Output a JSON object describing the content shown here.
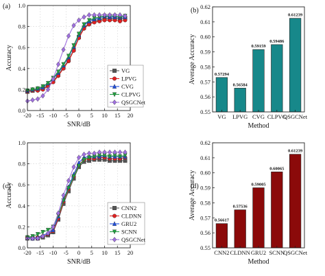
{
  "chart_data": [
    {
      "panel": "(a)",
      "type": "line",
      "xlabel": "SNR/dB",
      "ylabel": "Accuracy",
      "xlim": [
        -20,
        20
      ],
      "ylim": [
        0.0,
        1.0
      ],
      "xticks": [
        -20,
        -15,
        -10,
        -5,
        0,
        5,
        10,
        15,
        20
      ],
      "yticks": [
        0.0,
        0.2,
        0.4,
        0.6,
        0.8,
        1.0
      ],
      "legend": "bottom-right",
      "x": [
        -20,
        -18,
        -16,
        -14,
        -12,
        -10,
        -8,
        -6,
        -4,
        -2,
        0,
        2,
        4,
        6,
        8,
        10,
        12,
        14,
        16,
        18
      ],
      "series": [
        {
          "name": "VG",
          "color": "#555555",
          "marker": "square",
          "values": [
            0.18,
            0.19,
            0.2,
            0.21,
            0.24,
            0.28,
            0.34,
            0.41,
            0.48,
            0.58,
            0.7,
            0.79,
            0.83,
            0.85,
            0.86,
            0.88,
            0.87,
            0.88,
            0.87,
            0.88
          ]
        },
        {
          "name": "LPVG",
          "color": "#e02020",
          "marker": "circle",
          "values": [
            0.18,
            0.19,
            0.19,
            0.2,
            0.23,
            0.27,
            0.33,
            0.4,
            0.47,
            0.57,
            0.69,
            0.78,
            0.82,
            0.84,
            0.85,
            0.86,
            0.86,
            0.86,
            0.85,
            0.86
          ]
        },
        {
          "name": "CVG",
          "color": "#2050e0",
          "marker": "triangle-up",
          "values": [
            0.19,
            0.2,
            0.21,
            0.22,
            0.26,
            0.3,
            0.36,
            0.43,
            0.51,
            0.61,
            0.72,
            0.81,
            0.85,
            0.87,
            0.88,
            0.9,
            0.89,
            0.89,
            0.89,
            0.89
          ]
        },
        {
          "name": "CLPVG",
          "color": "#20a040",
          "marker": "triangle-down",
          "values": [
            0.19,
            0.2,
            0.21,
            0.23,
            0.26,
            0.31,
            0.37,
            0.44,
            0.52,
            0.62,
            0.73,
            0.82,
            0.86,
            0.88,
            0.89,
            0.9,
            0.9,
            0.9,
            0.89,
            0.9
          ]
        },
        {
          "name": "QSGCNet",
          "color": "#a070e0",
          "marker": "diamond",
          "values": [
            0.09,
            0.1,
            0.11,
            0.14,
            0.2,
            0.3,
            0.44,
            0.58,
            0.71,
            0.81,
            0.86,
            0.89,
            0.91,
            0.91,
            0.91,
            0.91,
            0.91,
            0.91,
            0.91,
            0.9
          ]
        }
      ]
    },
    {
      "panel": "(b)",
      "type": "bar",
      "xlabel": "Method",
      "ylabel": "Average Accuracy",
      "ylim": [
        0.55,
        0.62
      ],
      "yticks": [
        0.55,
        0.56,
        0.57,
        0.58,
        0.59,
        0.6,
        0.61,
        0.62
      ],
      "bar_color": "#17888a",
      "categories": [
        "VG",
        "LPVG",
        "CVG",
        "CLPVG",
        "QSGCNet"
      ],
      "values": [
        0.57294,
        0.56584,
        0.59159,
        0.59486,
        0.61239
      ],
      "labels": [
        "0.57294",
        "0.56584",
        "0.59159",
        "0.59486",
        "0.61239"
      ]
    },
    {
      "panel": "(c)",
      "type": "line",
      "xlabel": "SNR/dB",
      "ylabel": "Accuracy",
      "xlim": [
        -20,
        20
      ],
      "ylim": [
        0.0,
        1.0
      ],
      "xticks": [
        -20,
        -15,
        -10,
        -5,
        0,
        5,
        10,
        15,
        20
      ],
      "yticks": [
        0.0,
        0.2,
        0.4,
        0.6,
        0.8,
        1.0
      ],
      "legend": "bottom-right",
      "x": [
        -20,
        -18,
        -16,
        -14,
        -12,
        -10,
        -8,
        -6,
        -4,
        -2,
        0,
        2,
        4,
        6,
        8,
        10,
        12,
        14,
        16,
        18
      ],
      "series": [
        {
          "name": "CNN2",
          "color": "#555555",
          "marker": "square",
          "values": [
            0.09,
            0.09,
            0.09,
            0.1,
            0.12,
            0.15,
            0.27,
            0.42,
            0.54,
            0.66,
            0.77,
            0.82,
            0.83,
            0.84,
            0.84,
            0.84,
            0.83,
            0.83,
            0.83,
            0.83
          ]
        },
        {
          "name": "CLDNN",
          "color": "#e02020",
          "marker": "circle",
          "values": [
            0.1,
            0.09,
            0.1,
            0.11,
            0.13,
            0.16,
            0.28,
            0.44,
            0.56,
            0.68,
            0.79,
            0.84,
            0.85,
            0.85,
            0.86,
            0.86,
            0.85,
            0.85,
            0.85,
            0.86
          ]
        },
        {
          "name": "GRU2",
          "color": "#2050e0",
          "marker": "triangle-up",
          "values": [
            0.1,
            0.09,
            0.1,
            0.12,
            0.14,
            0.17,
            0.3,
            0.46,
            0.58,
            0.7,
            0.81,
            0.86,
            0.87,
            0.87,
            0.87,
            0.88,
            0.87,
            0.87,
            0.87,
            0.87
          ]
        },
        {
          "name": "SCNN",
          "color": "#20a040",
          "marker": "triangle-down",
          "values": [
            0.1,
            0.11,
            0.13,
            0.15,
            0.17,
            0.2,
            0.31,
            0.45,
            0.57,
            0.68,
            0.78,
            0.84,
            0.86,
            0.87,
            0.88,
            0.88,
            0.87,
            0.88,
            0.87,
            0.88
          ]
        },
        {
          "name": "QSGCNet",
          "color": "#a070e0",
          "marker": "diamond",
          "values": [
            0.09,
            0.09,
            0.09,
            0.11,
            0.14,
            0.2,
            0.33,
            0.5,
            0.64,
            0.77,
            0.86,
            0.89,
            0.9,
            0.9,
            0.91,
            0.91,
            0.91,
            0.91,
            0.91,
            0.91
          ]
        }
      ]
    },
    {
      "panel": "(d)",
      "type": "bar",
      "xlabel": "Method",
      "ylabel": "Average Accuracy",
      "ylim": [
        0.55,
        0.62
      ],
      "yticks": [
        0.55,
        0.56,
        0.57,
        0.58,
        0.59,
        0.6,
        0.61,
        0.62
      ],
      "bar_color": "#8b0a0a",
      "categories": [
        "CNN2",
        "CLDNN",
        "GRU2",
        "SCNN",
        "QSGCNet"
      ],
      "values": [
        0.56617,
        0.57536,
        0.59005,
        0.60065,
        0.61239
      ],
      "labels": [
        "0.56617",
        "0.57536",
        "0.59005",
        "0.60065",
        "0.61239"
      ]
    }
  ]
}
